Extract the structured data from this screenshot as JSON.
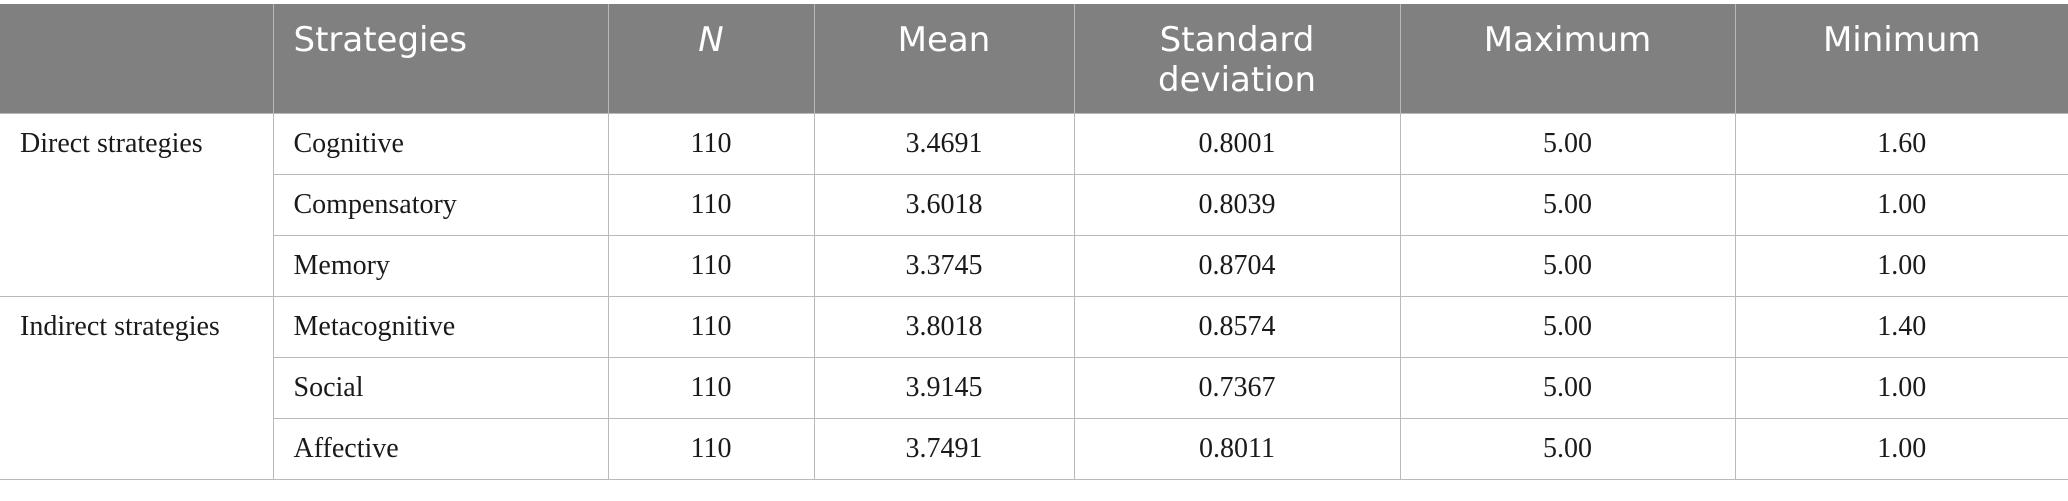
{
  "table": {
    "headers": [
      "",
      "Strategies",
      "N",
      "Mean",
      "Standard deviation",
      "Maximum",
      "Minimum"
    ],
    "groups": [
      {
        "label": "Direct strategies",
        "rows": [
          {
            "strategy": "Cognitive",
            "n": "110",
            "mean": "3.4691",
            "sd": "0.8001",
            "max": "5.00",
            "min": "1.60"
          },
          {
            "strategy": "Compensatory",
            "n": "110",
            "mean": "3.6018",
            "sd": "0.8039",
            "max": "5.00",
            "min": "1.00"
          },
          {
            "strategy": "Memory",
            "n": "110",
            "mean": "3.3745",
            "sd": "0.8704",
            "max": "5.00",
            "min": "1.00"
          }
        ]
      },
      {
        "label": "Indirect strategies",
        "rows": [
          {
            "strategy": "Metacognitive",
            "n": "110",
            "mean": "3.8018",
            "sd": "0.8574",
            "max": "5.00",
            "min": "1.40"
          },
          {
            "strategy": "Social",
            "n": "110",
            "mean": "3.9145",
            "sd": "0.7367",
            "max": "5.00",
            "min": "1.00"
          },
          {
            "strategy": "Affective",
            "n": "110",
            "mean": "3.7491",
            "sd": "0.8011",
            "max": "5.00",
            "min": "1.00"
          }
        ]
      }
    ]
  }
}
